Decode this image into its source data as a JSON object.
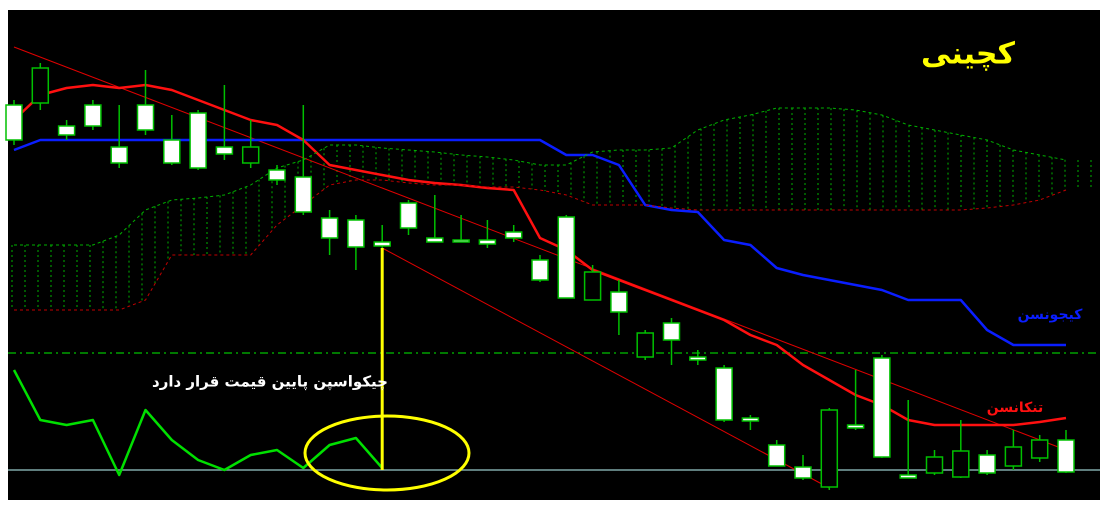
{
  "chart_data": {
    "type": "candlestick",
    "title": "کچینی",
    "annotation": "چیکواسپن پایین قیمت قرار دارد",
    "ylim": [
      0,
      490
    ],
    "up_color": "#000000",
    "down_color": "#ffffff",
    "candle_stroke": "#00c000",
    "open": [
      395,
      397,
      374,
      395,
      353,
      395,
      360,
      387,
      353,
      337,
      330,
      323,
      282,
      280,
      258,
      297,
      262,
      260,
      260,
      268,
      240,
      283,
      200,
      208,
      143,
      177,
      143,
      132,
      82,
      55,
      33,
      13,
      75,
      142,
      25,
      27,
      23,
      45,
      34,
      42,
      60
    ],
    "high": [
      400,
      437,
      380,
      400,
      395,
      430,
      385,
      390,
      415,
      380,
      335,
      395,
      290,
      285,
      275,
      300,
      305,
      285,
      280,
      275,
      245,
      285,
      235,
      220,
      170,
      182,
      150,
      135,
      85,
      60,
      45,
      92,
      130,
      145,
      100,
      50,
      80,
      50,
      70,
      65,
      70
    ],
    "low": [
      355,
      390,
      360,
      370,
      332,
      365,
      335,
      330,
      340,
      332,
      315,
      285,
      245,
      230,
      235,
      265,
      258,
      258,
      252,
      258,
      218,
      202,
      200,
      165,
      140,
      135,
      135,
      78,
      70,
      34,
      20,
      10,
      70,
      42,
      22,
      25,
      22,
      25,
      30,
      38,
      27
    ],
    "close": [
      360,
      432,
      365,
      374,
      337,
      370,
      337,
      332,
      346,
      353,
      320,
      288,
      262,
      253,
      254,
      272,
      258,
      258,
      256,
      262,
      220,
      202,
      228,
      188,
      167,
      160,
      140,
      80,
      79,
      34,
      22,
      90,
      72,
      43,
      22,
      43,
      49,
      27,
      53,
      60,
      28
    ],
    "series": [
      {
        "name": "کیجونسن",
        "color": "#0a1eff",
        "values": [
          350,
          360,
          360,
          360,
          360,
          360,
          360,
          360,
          360,
          360,
          360,
          360,
          360,
          360,
          360,
          360,
          360,
          360,
          360,
          360,
          360,
          345,
          345,
          335,
          295,
          290,
          288,
          260,
          255,
          232,
          225,
          220,
          215,
          210,
          200,
          200,
          200,
          170,
          155,
          155,
          155
        ]
      },
      {
        "name": "تنکانسن",
        "color": "#ff1010",
        "values": [
          380,
          405,
          412,
          415,
          412,
          415,
          410,
          400,
          390,
          380,
          375,
          360,
          335,
          330,
          325,
          320,
          317,
          315,
          312,
          310,
          262,
          250,
          230,
          220,
          210,
          200,
          190,
          180,
          165,
          155,
          135,
          120,
          105,
          95,
          80,
          75,
          75,
          75,
          75,
          78,
          82
        ]
      },
      {
        "color": "#00e000",
        "values": [
          130,
          80,
          75,
          80,
          25,
          90,
          60,
          40,
          30,
          45,
          50,
          32,
          55,
          62,
          32,
          null,
          null,
          null,
          null,
          null,
          null,
          null,
          null,
          null,
          null,
          null,
          null,
          null,
          null,
          null,
          null,
          null,
          null,
          null,
          null,
          null,
          null,
          null,
          null,
          null,
          null
        ]
      },
      {
        "color": "#00b000",
        "dashed": true,
        "values": [
          255,
          255,
          255,
          255,
          265,
          290,
          300,
          302,
          305,
          315,
          332,
          340,
          355,
          355,
          352,
          350,
          348,
          345,
          343,
          340,
          335,
          335,
          348,
          350,
          350,
          352,
          370,
          380,
          385,
          392,
          392,
          392,
          390,
          385,
          375,
          370,
          365,
          360,
          350,
          345,
          340
        ]
      },
      {
        "color": "#c00000",
        "dashed": true,
        "values": [
          190,
          190,
          190,
          190,
          190,
          200,
          245,
          245,
          245,
          245,
          275,
          295,
          315,
          320,
          320,
          317,
          315,
          315,
          313,
          313,
          310,
          305,
          295,
          295,
          295,
          292,
          290,
          290,
          290,
          290,
          290,
          290,
          290,
          290,
          290,
          290,
          290,
          292,
          295,
          300,
          310
        ]
      }
    ],
    "cloud_hatch": true,
    "trend_lines": [
      {
        "start": [
          0,
          453
        ],
        "end": [
          40,
          50
        ],
        "color": "#e00000"
      },
      {
        "start": [
          14,
          252
        ],
        "end": [
          31,
          12
        ],
        "color": "#e00000"
      }
    ],
    "levels": [
      {
        "value": 147,
        "color": "#00a000",
        "dashed": true
      },
      {
        "value": 30,
        "color": "#7fa8a8"
      }
    ],
    "marker_line": {
      "x": 14,
      "from": 252,
      "to": 30,
      "color": "#ffff00"
    }
  }
}
